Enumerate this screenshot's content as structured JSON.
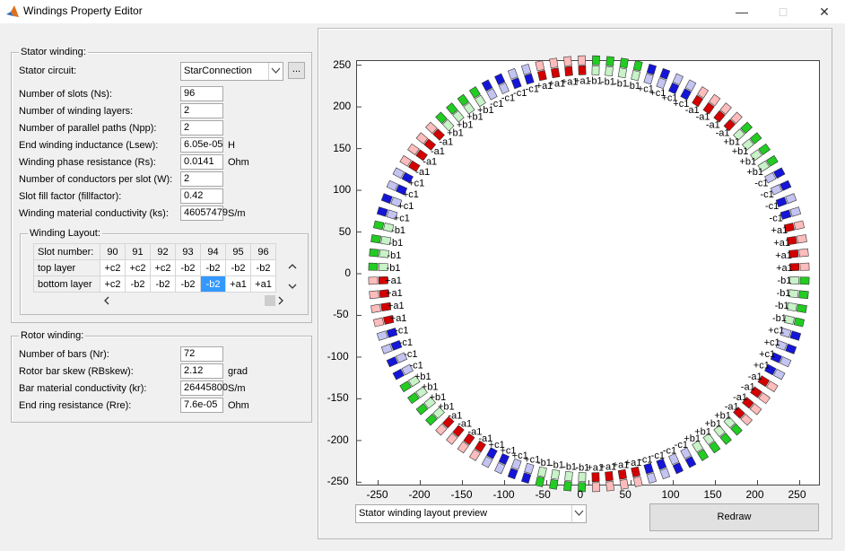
{
  "window": {
    "title": "Windings Property Editor"
  },
  "stator": {
    "legend": "Stator winding:",
    "circuit_label": "Stator circuit:",
    "circuit_value": "StarConnection",
    "ellipsis": "...",
    "fields": [
      {
        "label": "Number of slots (Ns):",
        "value": "96",
        "unit": ""
      },
      {
        "label": "Number of winding layers:",
        "value": "2",
        "unit": ""
      },
      {
        "label": "Number of parallel paths (Npp):",
        "value": "2",
        "unit": ""
      },
      {
        "label": "End winding inductance (Lsew):",
        "value": "6.05e-05",
        "unit": "H"
      },
      {
        "label": "Winding phase resistance (Rs):",
        "value": "0.0141",
        "unit": "Ohm"
      },
      {
        "label": "Number of conductors per slot (W):",
        "value": "2",
        "unit": ""
      },
      {
        "label": "Slot fill factor (fillfactor):",
        "value": "0.42",
        "unit": ""
      },
      {
        "label": "Winding material conductivity (ks):",
        "value": "46057479",
        "unit": "S/m"
      }
    ]
  },
  "layout": {
    "legend": "Winding Layout:",
    "slot_label": "Slot number:",
    "slots": [
      "90",
      "91",
      "92",
      "93",
      "94",
      "95",
      "96"
    ],
    "top_label": "top layer",
    "top": [
      "+c2",
      "+c2",
      "+c2",
      "-b2",
      "-b2",
      "-b2",
      "-b2"
    ],
    "bottom_label": "bottom layer",
    "bottom": [
      "+c2",
      "-b2",
      "-b2",
      "-b2",
      "-b2",
      "+a1",
      "+a1"
    ]
  },
  "rotor": {
    "legend": "Rotor winding:",
    "fields": [
      {
        "label": "Number of bars (Nr):",
        "value": "72",
        "unit": ""
      },
      {
        "label": "Rotor bar skew (RBskew):",
        "value": "2.12",
        "unit": "grad"
      },
      {
        "label": "Bar material conductivity (kr):",
        "value": "26445800",
        "unit": "S/m"
      },
      {
        "label": "End ring resistance (Rre):",
        "value": "7.6e-05",
        "unit": "Ohm"
      }
    ]
  },
  "preview": {
    "selected": "Stator winding layout preview",
    "redraw_label": "Redraw"
  },
  "colors": {
    "a": "#d40000",
    "b": "#22cc22",
    "c": "#1515d8",
    "a_light": "#ffbcbc",
    "b_light": "#c8f2c8",
    "c_light": "#c4c4f2",
    "selected_cell": "#3399ff"
  },
  "chart_data": {
    "type": "scatter",
    "title": "",
    "xlabel": "",
    "ylabel": "",
    "xlim": [
      -275,
      275
    ],
    "ylim": [
      -255,
      255
    ],
    "xticks": [
      -250,
      -200,
      -150,
      -100,
      -50,
      0,
      50,
      100,
      150,
      200,
      250
    ],
    "yticks": [
      250,
      200,
      150,
      100,
      50,
      0,
      -50,
      -100,
      -150,
      -200,
      -250
    ],
    "slots": 96,
    "ring_radius": 250,
    "phase_pattern": [
      "a",
      "a",
      "a",
      "a",
      "c",
      "c",
      "c",
      "c",
      "b",
      "b",
      "b",
      "b"
    ],
    "layer_labels_top": [
      "+a1",
      "+a1",
      "+a1",
      "+a1",
      "-c1",
      "-c1",
      "-c1",
      "-c1",
      "+b1",
      "+b1",
      "+b1",
      "+b1",
      "-a1",
      "-a1",
      "-a1",
      "-a1",
      "+c1",
      "+c1",
      "+c1",
      "+c1",
      "-b1",
      "-b1",
      "-b1",
      "-b1"
    ]
  }
}
